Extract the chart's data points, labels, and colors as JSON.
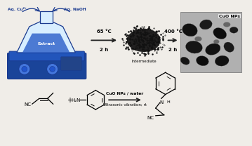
{
  "bg_color": "#f0ede8",
  "arrow1_label1": "65 °C",
  "arrow1_label2": "2 h",
  "arrow2_label1": "400 °C",
  "arrow2_label2": "2 h",
  "cuo_label": "CuO NPs",
  "intermediate_label": "Intermediate",
  "extract_label": "Extract",
  "aq_cu_label": "Aq. Cu²⁺",
  "aq_naoh_label": "Aq. NaOH",
  "reaction_label1": "CuO NPs / water",
  "reaction_label2": "Ultrasonic vibration; rt",
  "nc_label1": "NC",
  "nc_label2": "NC",
  "plus_label": "+",
  "h2n_label": "H₂N",
  "n_label": "N",
  "h_label": "H",
  "blue_dark": "#1a3a8f",
  "blue_med": "#2255cc",
  "blue_light": "#4477dd",
  "blue_bright": "#3399ff",
  "flask_glass": "#d8eeff",
  "flask_liquid": "#3366cc",
  "hotplate_body": "#1a4499",
  "hotplate_top": "#2255bb",
  "arrow_color": "#222222",
  "black": "#000000",
  "tem_bg": "#b0b0b0",
  "tem_blob_dark": "#1a1a1a",
  "tem_blob_mid": "#555555",
  "tem_blob_light": "#888888",
  "powder_color": "#111111",
  "white": "#ffffff"
}
